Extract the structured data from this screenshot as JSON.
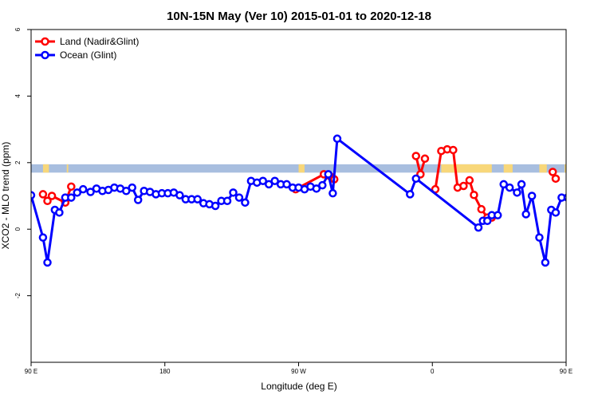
{
  "chart_data": {
    "type": "line",
    "title": "10N-15N May (Ver 10)   2015-01-01 to 2020-12-18",
    "xlabel": "Longitude (deg E)",
    "ylabel": "XCO2 - MLO trend (ppm)",
    "xlim": [
      90,
      450
    ],
    "ylim": [
      -4,
      6
    ],
    "x_ticks": [
      {
        "value": 90,
        "label": "90 E"
      },
      {
        "value": 180,
        "label": "180"
      },
      {
        "value": 270,
        "label": "90 W"
      },
      {
        "value": 360,
        "label": "0"
      },
      {
        "value": 450,
        "label": "90 E"
      },
      {
        "value": 540,
        "label": "180"
      }
    ],
    "y_ticks": [
      {
        "value": -2,
        "label": "-2"
      },
      {
        "value": 0,
        "label": "0"
      },
      {
        "value": 2,
        "label": "2"
      },
      {
        "value": 4,
        "label": "4"
      },
      {
        "value": 6,
        "label": "6"
      }
    ],
    "land_band": {
      "y_min": 1.7,
      "y_max": 1.95,
      "ocean_color": "#a8bedf",
      "land_color": "#f8d77a",
      "land_segments": [
        [
          98,
          102
        ],
        [
          114,
          115
        ],
        [
          270,
          274
        ],
        [
          366,
          400
        ],
        [
          408,
          414
        ],
        [
          432,
          437
        ],
        [
          449,
          450
        ]
      ]
    },
    "legend": {
      "position": "top-left"
    },
    "series": [
      {
        "name": "Land (Nadir&Glint)",
        "color": "#ff0000",
        "points": [
          [
            98,
            1.05
          ],
          [
            101,
            0.85
          ],
          [
            104,
            1.0
          ],
          [
            113,
            0.8
          ],
          [
            117,
            1.28
          ],
          [
            268,
            1.2
          ],
          [
            287,
            1.65
          ],
          [
            291,
            1.6
          ],
          [
            294,
            1.5
          ],
          [
            349,
            2.2
          ],
          [
            352,
            1.65
          ],
          [
            355,
            2.12
          ],
          [
            362,
            1.2
          ],
          [
            366,
            2.35
          ],
          [
            370,
            2.4
          ],
          [
            374,
            2.38
          ],
          [
            377,
            1.25
          ],
          [
            381,
            1.3
          ],
          [
            385,
            1.47
          ],
          [
            388,
            1.03
          ],
          [
            393,
            0.6
          ],
          [
            397,
            0.35
          ],
          [
            400,
            0.35
          ],
          [
            441,
            1.72
          ],
          [
            443,
            1.52
          ],
          [
            457,
            1.05
          ],
          [
            459,
            0.85
          ],
          [
            463,
            1.0
          ],
          [
            472,
            0.8
          ],
          [
            476,
            1.28
          ]
        ],
        "segments": [
          [
            0,
            4
          ],
          [
            5,
            8
          ],
          [
            9,
            11
          ],
          [
            12,
            22
          ],
          [
            23,
            24
          ],
          [
            25,
            29
          ]
        ]
      },
      {
        "name": "Ocean (Glint)",
        "color": "#0000ff",
        "points": [
          [
            90,
            1.02
          ],
          [
            98,
            -0.25
          ],
          [
            101,
            -1.0
          ],
          [
            106,
            0.58
          ],
          [
            109,
            0.5
          ],
          [
            113,
            0.95
          ],
          [
            117,
            0.95
          ],
          [
            121,
            1.1
          ],
          [
            125,
            1.2
          ],
          [
            130,
            1.12
          ],
          [
            134,
            1.22
          ],
          [
            138,
            1.15
          ],
          [
            142,
            1.18
          ],
          [
            146,
            1.25
          ],
          [
            150,
            1.22
          ],
          [
            154,
            1.15
          ],
          [
            158,
            1.25
          ],
          [
            162,
            0.88
          ],
          [
            166,
            1.15
          ],
          [
            170,
            1.12
          ],
          [
            174,
            1.05
          ],
          [
            178,
            1.08
          ],
          [
            182,
            1.08
          ],
          [
            186,
            1.1
          ],
          [
            190,
            1.02
          ],
          [
            194,
            0.9
          ],
          [
            198,
            0.9
          ],
          [
            202,
            0.9
          ],
          [
            206,
            0.78
          ],
          [
            210,
            0.75
          ],
          [
            214,
            0.7
          ],
          [
            218,
            0.85
          ],
          [
            222,
            0.85
          ],
          [
            226,
            1.1
          ],
          [
            230,
            0.95
          ],
          [
            234,
            0.8
          ],
          [
            238,
            1.45
          ],
          [
            242,
            1.4
          ],
          [
            246,
            1.45
          ],
          [
            250,
            1.35
          ],
          [
            254,
            1.45
          ],
          [
            258,
            1.35
          ],
          [
            262,
            1.35
          ],
          [
            266,
            1.25
          ],
          [
            270,
            1.25
          ],
          [
            274,
            1.2
          ],
          [
            278,
            1.28
          ],
          [
            282,
            1.22
          ],
          [
            286,
            1.32
          ],
          [
            290,
            1.65
          ],
          [
            293,
            1.08
          ],
          [
            296,
            2.72
          ],
          [
            345,
            1.05
          ],
          [
            349,
            1.52
          ],
          [
            391,
            0.05
          ],
          [
            394,
            0.25
          ],
          [
            397,
            0.25
          ],
          [
            400,
            0.42
          ],
          [
            404,
            0.42
          ],
          [
            408,
            1.35
          ],
          [
            412,
            1.25
          ],
          [
            417,
            1.1
          ],
          [
            420,
            1.35
          ],
          [
            423,
            0.45
          ],
          [
            427,
            1.0
          ],
          [
            432,
            -0.25
          ],
          [
            436,
            -1.0
          ],
          [
            440,
            0.58
          ],
          [
            443,
            0.5
          ],
          [
            447,
            0.95
          ],
          [
            451,
            0.95
          ],
          [
            455,
            1.1
          ],
          [
            459,
            1.2
          ],
          [
            463,
            1.12
          ],
          [
            467,
            1.22
          ],
          [
            471,
            1.15
          ],
          [
            475,
            1.18
          ],
          [
            479,
            1.25
          ],
          [
            483,
            1.22
          ],
          [
            487,
            1.15
          ],
          [
            491,
            1.25
          ],
          [
            495,
            0.88
          ]
        ]
      }
    ]
  }
}
